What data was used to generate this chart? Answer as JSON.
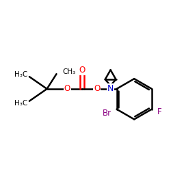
{
  "background": "#ffffff",
  "bond_color": "#000000",
  "bond_lw": 1.8,
  "atom_colors": {
    "O": "#ff0000",
    "N": "#0000cc",
    "Br": "#8b0082",
    "F": "#8b0082",
    "C": "#000000"
  },
  "font_size": 8.0,
  "fig_size": [
    2.5,
    2.5
  ],
  "dpi": 100,
  "xlim": [
    0,
    250
  ],
  "ylim": [
    0,
    250
  ]
}
